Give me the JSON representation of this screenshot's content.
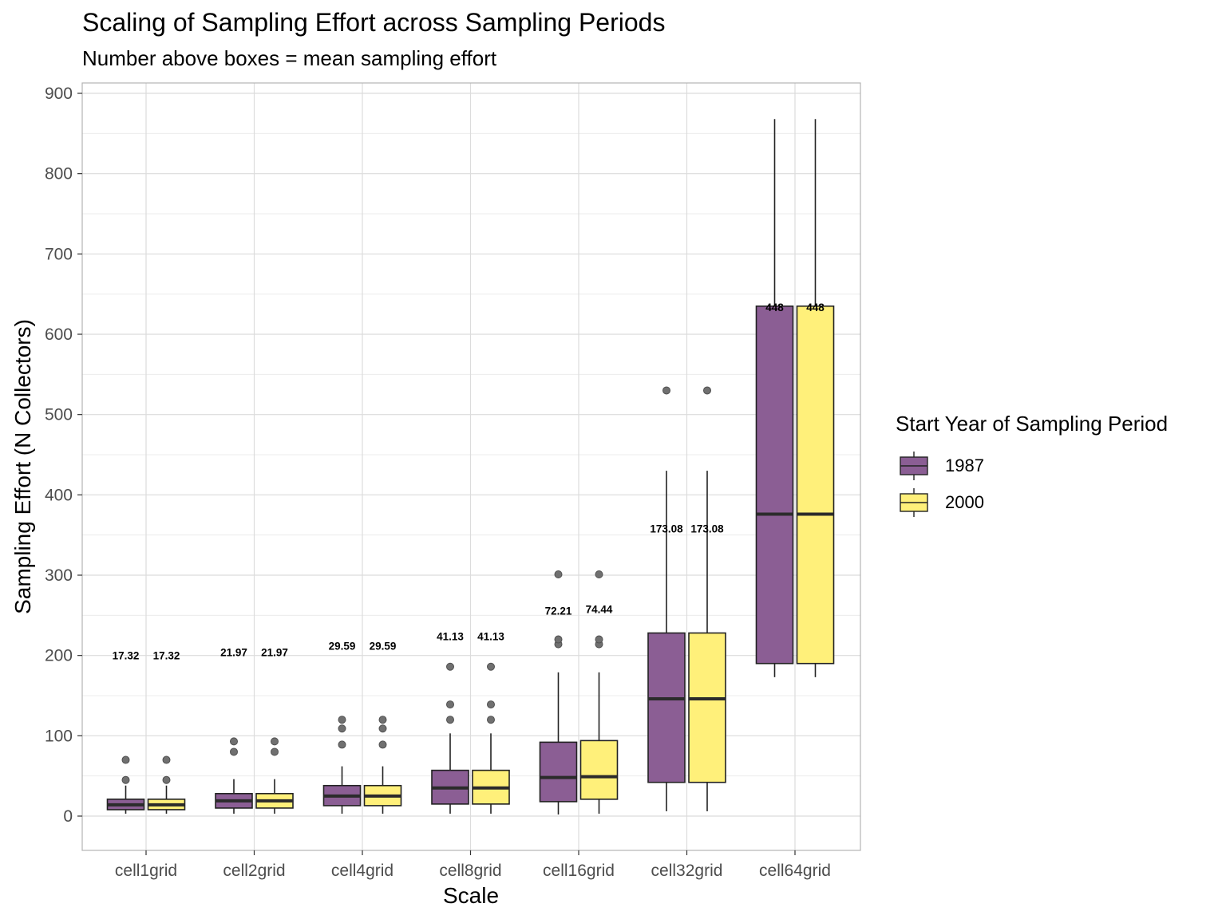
{
  "chart_data": {
    "type": "boxplot",
    "title": "Scaling of Sampling Effort across Sampling Periods",
    "subtitle": "Number above boxes = mean sampling effort",
    "xlabel": "Scale",
    "ylabel": "Sampling Effort (N Collectors)",
    "ylim": [
      -40,
      910
    ],
    "yticks": [
      0,
      100,
      200,
      300,
      400,
      500,
      600,
      700,
      800,
      900
    ],
    "grid": true,
    "legend": {
      "title": "Start Year of Sampling Period",
      "placement": "right",
      "items": [
        {
          "label": "1987",
          "color": "#8b5e94"
        },
        {
          "label": "2000",
          "color": "#fff07a"
        }
      ]
    },
    "categories": [
      "cell1grid",
      "cell2grid",
      "cell4grid",
      "cell8grid",
      "cell16grid",
      "cell32grid",
      "cell64grid"
    ],
    "series": [
      {
        "name": "1987",
        "color": "#8b5e94",
        "boxes": [
          {
            "min": 3,
            "q1": 8,
            "median": 14,
            "q3": 21,
            "max": 38,
            "outliers": [
              45,
              70
            ],
            "mean": 17.32,
            "mean_label": "17.32",
            "label_y": 200
          },
          {
            "min": 3,
            "q1": 10,
            "median": 19,
            "q3": 28,
            "max": 46,
            "outliers": [
              80,
              93
            ],
            "mean": 21.97,
            "mean_label": "21.97",
            "label_y": 204
          },
          {
            "min": 3,
            "q1": 13,
            "median": 25,
            "q3": 38,
            "max": 62,
            "outliers": [
              89,
              109,
              120
            ],
            "mean": 29.59,
            "mean_label": "29.59",
            "label_y": 212
          },
          {
            "min": 3,
            "q1": 15,
            "median": 35,
            "q3": 57,
            "max": 103,
            "outliers": [
              120,
              139,
              186
            ],
            "mean": 41.13,
            "mean_label": "41.13",
            "label_y": 224
          },
          {
            "min": 2,
            "q1": 18,
            "median": 48,
            "q3": 92,
            "max": 179,
            "outliers": [
              214,
              220,
              301
            ],
            "mean": 72.21,
            "mean_label": "72.21",
            "label_y": 256
          },
          {
            "min": 6,
            "q1": 42,
            "median": 146,
            "q3": 228,
            "max": 430,
            "outliers": [
              530
            ],
            "mean": 173.08,
            "mean_label": "173.08",
            "label_y": 358
          },
          {
            "min": 173,
            "q1": 190,
            "median": 376,
            "q3": 635,
            "max": 868,
            "outliers": [],
            "mean": 448,
            "mean_label": "448",
            "label_y": 634
          }
        ]
      },
      {
        "name": "2000",
        "color": "#fff07a",
        "boxes": [
          {
            "min": 3,
            "q1": 8,
            "median": 14,
            "q3": 21,
            "max": 38,
            "outliers": [
              45,
              70
            ],
            "mean": 17.32,
            "mean_label": "17.32",
            "label_y": 200
          },
          {
            "min": 3,
            "q1": 10,
            "median": 19,
            "q3": 28,
            "max": 46,
            "outliers": [
              80,
              93
            ],
            "mean": 21.97,
            "mean_label": "21.97",
            "label_y": 204
          },
          {
            "min": 3,
            "q1": 13,
            "median": 25,
            "q3": 38,
            "max": 62,
            "outliers": [
              89,
              109,
              120
            ],
            "mean": 29.59,
            "mean_label": "29.59",
            "label_y": 212
          },
          {
            "min": 3,
            "q1": 15,
            "median": 35,
            "q3": 57,
            "max": 103,
            "outliers": [
              120,
              139,
              186
            ],
            "mean": 41.13,
            "mean_label": "41.13",
            "label_y": 224
          },
          {
            "min": 3,
            "q1": 21,
            "median": 49,
            "q3": 94,
            "max": 179,
            "outliers": [
              214,
              220,
              301
            ],
            "mean": 74.44,
            "mean_label": "74.44",
            "label_y": 258
          },
          {
            "min": 6,
            "q1": 42,
            "median": 146,
            "q3": 228,
            "max": 430,
            "outliers": [
              530
            ],
            "mean": 173.08,
            "mean_label": "173.08",
            "label_y": 358
          },
          {
            "min": 173,
            "q1": 190,
            "median": 376,
            "q3": 635,
            "max": 868,
            "outliers": [],
            "mean": 448,
            "mean_label": "448",
            "label_y": 634
          }
        ]
      }
    ]
  }
}
